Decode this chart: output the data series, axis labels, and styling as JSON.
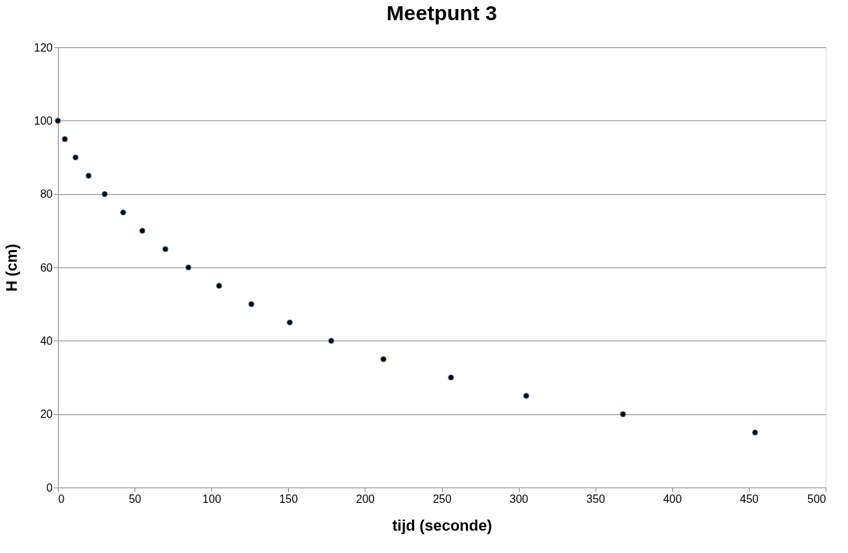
{
  "chart_data": {
    "type": "scatter",
    "title": "Meetpunt 3",
    "xlabel": "tijd (seconde)",
    "ylabel": "H (cm)",
    "x": [
      0,
      4.5,
      11.5,
      20,
      30.5,
      42.5,
      55,
      70,
      85,
      105,
      126,
      151,
      178,
      212,
      256,
      305,
      368,
      454
    ],
    "series": [
      {
        "color": "#000000",
        "values": [
          100,
          95,
          90,
          85,
          80,
          75,
          70,
          65,
          60,
          55,
          50,
          45,
          40,
          35,
          30,
          25,
          20,
          15
        ]
      }
    ],
    "xlim": [
      0,
      500
    ],
    "xticks": [
      0,
      50,
      100,
      150,
      200,
      250,
      300,
      350,
      400,
      450,
      500
    ],
    "ylim": [
      0,
      120
    ],
    "yticks": [
      0,
      20,
      40,
      60,
      80,
      100,
      120
    ],
    "grid": "y",
    "marker": "circle"
  }
}
